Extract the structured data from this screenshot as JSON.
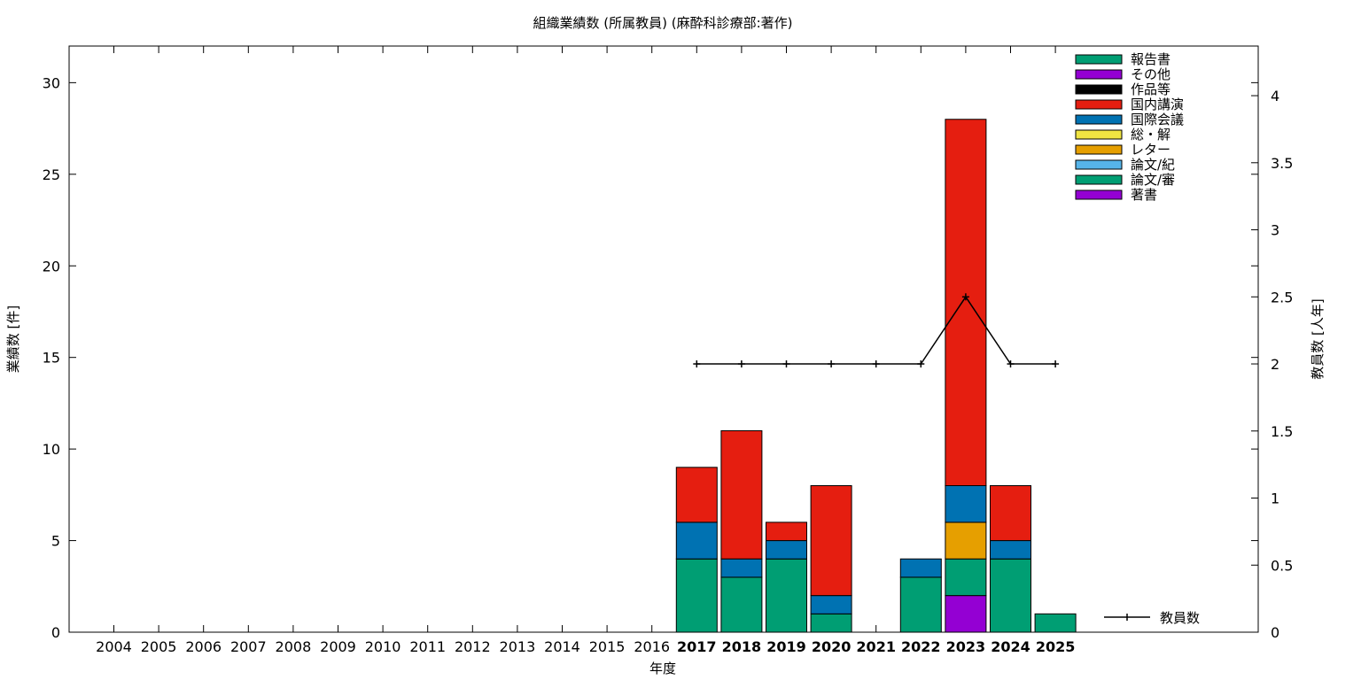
{
  "chart_data": {
    "type": "bar",
    "title": "組織業績数 (所属教員) (麻酔科診療部:著作)",
    "xlabel": "年度",
    "ylabel": "業績数 [件]",
    "y2label": "教員数 [人年]",
    "ylim": [
      0,
      32
    ],
    "y2lim": [
      0,
      4.37
    ],
    "yticks": [
      0,
      5,
      10,
      15,
      20,
      25,
      30
    ],
    "y2ticks": [
      "0",
      "0.5",
      "1",
      "1.5",
      "2",
      "2.5",
      "3",
      "3.5",
      "4"
    ],
    "grid": false,
    "legend_position": "top-right",
    "categories": [
      "2004",
      "2005",
      "2006",
      "2007",
      "2008",
      "2009",
      "2010",
      "2011",
      "2012",
      "2013",
      "2014",
      "2015",
      "2016",
      "2017",
      "2018",
      "2019",
      "2020",
      "2021",
      "2022",
      "2023",
      "2024",
      "2025"
    ],
    "bold_categories": [
      "2017",
      "2018",
      "2019",
      "2020",
      "2021",
      "2022",
      "2023",
      "2024",
      "2025"
    ],
    "series": [
      {
        "name": "著書",
        "color": "#9400d3",
        "values": [
          0,
          0,
          0,
          0,
          0,
          0,
          0,
          0,
          0,
          0,
          0,
          0,
          0,
          0,
          0,
          0,
          0,
          0,
          0,
          2,
          0,
          0
        ]
      },
      {
        "name": "論文/審",
        "color": "#009e73",
        "values": [
          0,
          0,
          0,
          0,
          0,
          0,
          0,
          0,
          0,
          0,
          0,
          0,
          0,
          4,
          3,
          4,
          1,
          0,
          3,
          2,
          4,
          1
        ]
      },
      {
        "name": "論文/紀",
        "color": "#56b4e9",
        "values": [
          0,
          0,
          0,
          0,
          0,
          0,
          0,
          0,
          0,
          0,
          0,
          0,
          0,
          0,
          0,
          0,
          0,
          0,
          0,
          0,
          0,
          0
        ]
      },
      {
        "name": "レター",
        "color": "#e69f00",
        "values": [
          0,
          0,
          0,
          0,
          0,
          0,
          0,
          0,
          0,
          0,
          0,
          0,
          0,
          0,
          0,
          0,
          0,
          0,
          0,
          2,
          0,
          0
        ]
      },
      {
        "name": "総・解",
        "color": "#f0e442",
        "values": [
          0,
          0,
          0,
          0,
          0,
          0,
          0,
          0,
          0,
          0,
          0,
          0,
          0,
          0,
          0,
          0,
          0,
          0,
          0,
          0,
          0,
          0
        ]
      },
      {
        "name": "国際会議",
        "color": "#0072b2",
        "values": [
          0,
          0,
          0,
          0,
          0,
          0,
          0,
          0,
          0,
          0,
          0,
          0,
          0,
          2,
          1,
          1,
          1,
          0,
          1,
          2,
          1,
          0
        ]
      },
      {
        "name": "国内講演",
        "color": "#e51e10",
        "values": [
          0,
          0,
          0,
          0,
          0,
          0,
          0,
          0,
          0,
          0,
          0,
          0,
          0,
          3,
          7,
          1,
          6,
          0,
          0,
          20,
          3,
          0
        ]
      },
      {
        "name": "作品等",
        "color": "#000000",
        "values": [
          0,
          0,
          0,
          0,
          0,
          0,
          0,
          0,
          0,
          0,
          0,
          0,
          0,
          0,
          0,
          0,
          0,
          0,
          0,
          0,
          0,
          0
        ]
      },
      {
        "name": "その他",
        "color": "#9400d3",
        "values": [
          0,
          0,
          0,
          0,
          0,
          0,
          0,
          0,
          0,
          0,
          0,
          0,
          0,
          0,
          0,
          0,
          0,
          0,
          0,
          0,
          0,
          0
        ]
      },
      {
        "name": "報告書",
        "color": "#009e73",
        "values": [
          0,
          0,
          0,
          0,
          0,
          0,
          0,
          0,
          0,
          0,
          0,
          0,
          0,
          0,
          0,
          0,
          0,
          0,
          0,
          0,
          0,
          0
        ]
      }
    ],
    "line_series": {
      "name": "教員数",
      "axis": "y2",
      "color": "#000000",
      "x": [
        "2017",
        "2018",
        "2019",
        "2020",
        "2021",
        "2022",
        "2023",
        "2024",
        "2025"
      ],
      "values": [
        2,
        2,
        2,
        2,
        2,
        2,
        2.5,
        2,
        2
      ]
    }
  }
}
